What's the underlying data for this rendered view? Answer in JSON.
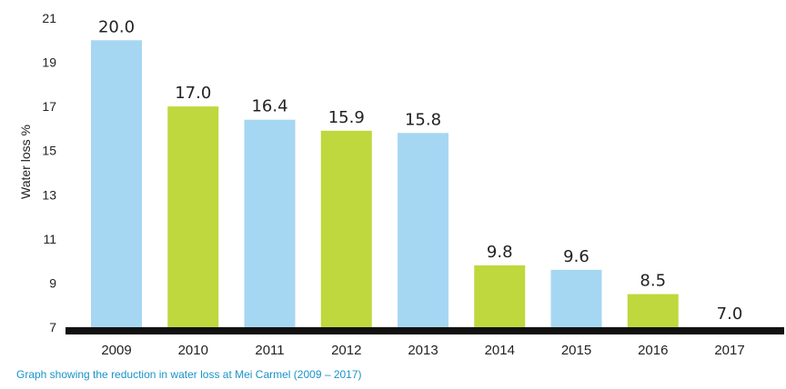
{
  "caption": "Graph showing the reduction in water loss at Mei Carmel (2009 – 2017)",
  "colors": {
    "blue": "#a6d7f2",
    "green": "#bfd83e",
    "baseline": "#111111",
    "caption": "#1a93c8"
  },
  "chart_data": {
    "type": "bar",
    "title": "",
    "xlabel": "",
    "ylabel": "Water loss %",
    "ylim": [
      7,
      21
    ],
    "yticks": [
      7,
      9,
      11,
      13,
      15,
      17,
      19,
      21
    ],
    "grid": false,
    "categories": [
      "2009",
      "2010",
      "2011",
      "2012",
      "2013",
      "2014",
      "2015",
      "2016",
      "2017"
    ],
    "values": [
      20.0,
      17.0,
      16.4,
      15.9,
      15.8,
      9.8,
      9.6,
      8.5,
      7.0
    ],
    "value_labels": [
      "20.0",
      "17.0",
      "16.4",
      "15.9",
      "15.8",
      "9.8",
      "9.6",
      "8.5",
      "7.0"
    ],
    "bar_colors": [
      "blue",
      "green",
      "blue",
      "green",
      "blue",
      "green",
      "blue",
      "green",
      "blue"
    ]
  }
}
